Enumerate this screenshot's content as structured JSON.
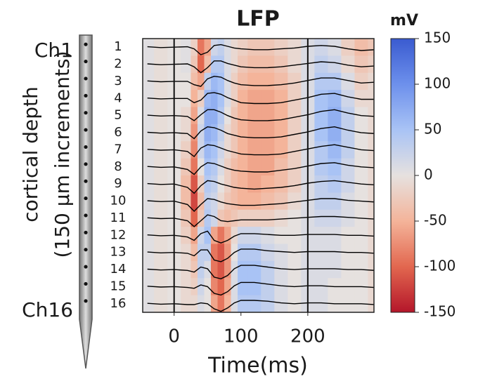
{
  "chart_data": {
    "type": "heatmap",
    "title": "LFP",
    "xlabel": "Time(ms)",
    "ylabel": [
      "cortical depth",
      "(150 μm increments)"
    ],
    "probe_labels": [
      "Ch1",
      "Ch16"
    ],
    "colorbar_label": "mV",
    "channels": [
      "1",
      "2",
      "3",
      "4",
      "5",
      "6",
      "7",
      "8",
      "9",
      "10",
      "11",
      "12",
      "13",
      "14",
      "15",
      "16"
    ],
    "x": [
      -40,
      -20,
      0,
      20,
      30,
      40,
      50,
      60,
      70,
      80,
      90,
      100,
      120,
      140,
      160,
      180,
      200,
      220,
      240,
      260,
      280,
      300
    ],
    "xlim": [
      -47,
      299
    ],
    "xticks": [
      0,
      100,
      200
    ],
    "vlines": [
      0,
      200
    ],
    "clim": [
      -150,
      150
    ],
    "cticks": [
      150,
      100,
      50,
      0,
      -50,
      -100,
      -150
    ],
    "colormap": [
      "#b4162a",
      "#e2674f",
      "#f4b49a",
      "#e6e1df",
      "#a9c3f5",
      "#6d90ec",
      "#3a5bd0"
    ],
    "trace_color": "#000000",
    "values": [
      [
        5,
        -5,
        0,
        5,
        -20,
        -90,
        -60,
        20,
        30,
        10,
        -10,
        -20,
        -30,
        -30,
        -20,
        -10,
        10,
        20,
        10,
        -20,
        -40,
        -30
      ],
      [
        5,
        -5,
        0,
        5,
        -30,
        -100,
        -40,
        40,
        40,
        10,
        -10,
        -30,
        -40,
        -40,
        -30,
        -10,
        10,
        30,
        20,
        -10,
        -30,
        -20
      ],
      [
        5,
        -5,
        0,
        0,
        -40,
        -60,
        30,
        60,
        50,
        10,
        -20,
        -40,
        -50,
        -50,
        -40,
        -20,
        10,
        40,
        40,
        10,
        -20,
        -10
      ],
      [
        5,
        -5,
        0,
        0,
        -50,
        -20,
        60,
        70,
        50,
        10,
        -20,
        -50,
        -60,
        -60,
        -50,
        -20,
        10,
        50,
        60,
        20,
        -10,
        -10
      ],
      [
        5,
        -5,
        0,
        -10,
        -60,
        10,
        70,
        70,
        40,
        0,
        -30,
        -50,
        -60,
        -60,
        -50,
        -20,
        10,
        50,
        70,
        30,
        0,
        -10
      ],
      [
        5,
        -5,
        0,
        -10,
        -70,
        20,
        70,
        60,
        30,
        -10,
        -30,
        -50,
        -60,
        -60,
        -50,
        -20,
        10,
        50,
        70,
        30,
        0,
        -10
      ],
      [
        5,
        -5,
        0,
        -20,
        -80,
        20,
        60,
        50,
        20,
        -10,
        -30,
        -50,
        -60,
        -60,
        -50,
        -20,
        10,
        40,
        60,
        30,
        0,
        -10
      ],
      [
        5,
        -5,
        0,
        -30,
        -90,
        0,
        50,
        40,
        10,
        -20,
        -40,
        -50,
        -60,
        -60,
        -40,
        -20,
        10,
        40,
        50,
        20,
        0,
        -10
      ],
      [
        5,
        -5,
        0,
        -40,
        -110,
        -20,
        40,
        30,
        0,
        -20,
        -40,
        -50,
        -60,
        -50,
        -40,
        -20,
        10,
        30,
        40,
        20,
        0,
        -10
      ],
      [
        5,
        -5,
        0,
        -40,
        -120,
        -40,
        30,
        20,
        -10,
        -30,
        -40,
        -50,
        -50,
        -40,
        -30,
        -10,
        10,
        30,
        30,
        10,
        0,
        -10
      ],
      [
        5,
        -5,
        0,
        -30,
        -100,
        -30,
        40,
        20,
        -30,
        -40,
        -30,
        -20,
        -20,
        -20,
        -10,
        0,
        10,
        20,
        20,
        10,
        0,
        -10
      ],
      [
        5,
        -5,
        0,
        -20,
        -60,
        20,
        50,
        -60,
        -90,
        -60,
        -10,
        20,
        20,
        10,
        0,
        0,
        10,
        10,
        10,
        0,
        0,
        -10
      ],
      [
        5,
        -5,
        0,
        -10,
        -40,
        30,
        30,
        -90,
        -110,
        -70,
        0,
        40,
        40,
        20,
        10,
        0,
        10,
        10,
        10,
        0,
        0,
        -10
      ],
      [
        5,
        -5,
        0,
        -10,
        -30,
        30,
        10,
        -90,
        -110,
        -70,
        10,
        50,
        50,
        30,
        10,
        0,
        10,
        10,
        10,
        0,
        0,
        -10
      ],
      [
        5,
        -5,
        0,
        -10,
        -20,
        20,
        0,
        -80,
        -100,
        -60,
        10,
        50,
        50,
        30,
        10,
        0,
        10,
        10,
        0,
        0,
        0,
        -10
      ],
      [
        5,
        -5,
        0,
        -10,
        -10,
        10,
        0,
        -60,
        -90,
        -50,
        10,
        40,
        40,
        30,
        10,
        0,
        10,
        10,
        0,
        0,
        0,
        -10
      ]
    ]
  }
}
